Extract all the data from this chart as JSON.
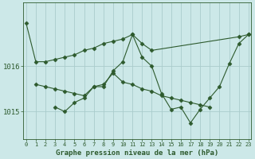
{
  "bg_color": "#cce8e8",
  "grid_color": "#aacccc",
  "line_color": "#2d5a2d",
  "text_color": "#2d5a2d",
  "xlabel": "Graphe pression niveau de la mer (hPa)",
  "ylim": [
    1014.4,
    1017.4
  ],
  "xlim": [
    -0.3,
    23.3
  ],
  "yticks": [
    1015,
    1016
  ],
  "xticks": [
    0,
    1,
    2,
    3,
    4,
    5,
    6,
    7,
    8,
    9,
    10,
    11,
    12,
    13,
    14,
    15,
    16,
    17,
    18,
    19,
    20,
    21,
    22,
    23
  ],
  "series1_x": [
    0,
    1,
    2,
    3,
    4,
    5,
    6,
    7,
    8,
    9,
    10,
    11,
    12,
    13,
    22,
    23
  ],
  "series1_y": [
    1016.95,
    1016.1,
    1016.1,
    1016.15,
    1016.2,
    1016.25,
    1016.35,
    1016.4,
    1016.5,
    1016.55,
    1016.6,
    1016.7,
    1016.5,
    1016.35,
    1016.65,
    1016.7
  ],
  "series2_x": [
    1,
    2,
    3,
    4,
    5,
    6,
    7,
    8,
    9,
    10,
    11,
    12,
    13,
    14,
    15,
    16,
    17,
    18,
    19
  ],
  "series2_y": [
    1015.6,
    1015.55,
    1015.5,
    1015.45,
    1015.4,
    1015.35,
    1015.55,
    1015.6,
    1015.85,
    1015.65,
    1015.6,
    1015.5,
    1015.45,
    1015.35,
    1015.3,
    1015.25,
    1015.2,
    1015.15,
    1015.1
  ],
  "series3_x": [
    3,
    4,
    5,
    6,
    7,
    8,
    9,
    10,
    11,
    12,
    13,
    14,
    15,
    16,
    17,
    18,
    19,
    20,
    21,
    22,
    23
  ],
  "series3_y": [
    1015.1,
    1015.0,
    1015.2,
    1015.3,
    1015.55,
    1015.55,
    1015.9,
    1016.1,
    1016.7,
    1016.2,
    1016.0,
    1015.4,
    1015.05,
    1015.1,
    1014.75,
    1015.05,
    1015.3,
    1015.55,
    1016.05,
    1016.5,
    1016.7
  ]
}
